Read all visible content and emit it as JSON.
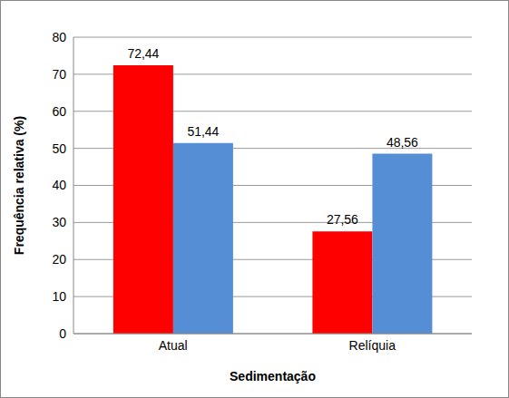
{
  "chart_data": {
    "type": "bar",
    "x_label": "Sedimentação",
    "y_label": "Frequência relativa (%)",
    "categories": [
      "Atual",
      "Relíquia"
    ],
    "series": [
      {
        "color": "#FF0000",
        "values": [
          72.44,
          27.56
        ],
        "value_labels": [
          "72,44",
          "27,56"
        ]
      },
      {
        "color": "#558ED5",
        "values": [
          51.44,
          48.56
        ],
        "value_labels": [
          "51,44",
          "48,56"
        ]
      }
    ],
    "ylim": [
      0,
      80
    ],
    "yticks": [
      0,
      10,
      20,
      30,
      40,
      50,
      60,
      70,
      80
    ],
    "grid": true,
    "data_labels": true
  }
}
